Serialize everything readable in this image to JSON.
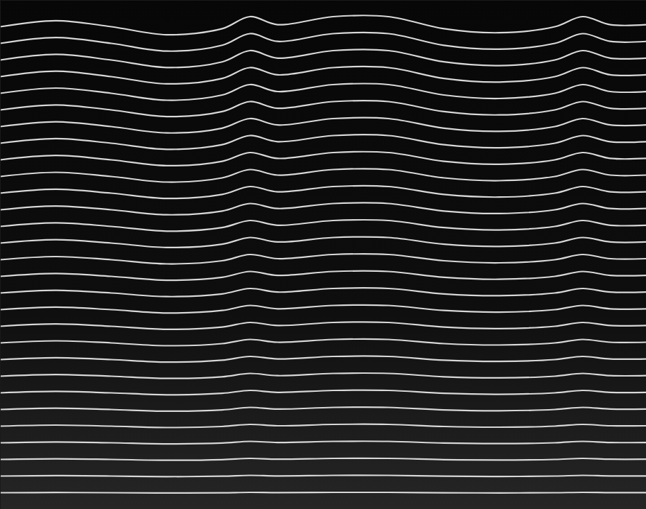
{
  "chart_data": {
    "type": "line",
    "color": "#d9d9d9",
    "tick_labels": false,
    "xlim": [
      0,
      932
    ],
    "ylim": [
      0,
      734
    ],
    "x": [
      0,
      80,
      160,
      240,
      320,
      360,
      400,
      480,
      560,
      640,
      720,
      800,
      840,
      880,
      932
    ],
    "series": [
      {
        "values": [
          24,
          24.3,
          24,
          23.6,
          23.9,
          24.5,
          24.1,
          24.5,
          24.5,
          23.9,
          23.7,
          24,
          24.5,
          24.1,
          24.1
        ]
      },
      {
        "values": [
          48,
          48.6,
          48,
          47.2,
          47.8,
          49,
          48.2,
          49,
          49,
          47.8,
          47.4,
          48,
          49,
          48.2,
          48.2
        ]
      },
      {
        "values": [
          72,
          72.9,
          72,
          70.8,
          71.7,
          73.5,
          72.3,
          73.5,
          73.5,
          71.7,
          71.1,
          72,
          73.5,
          72.3,
          72.3
        ]
      },
      {
        "values": [
          96,
          97.2,
          96,
          94.4,
          95.6,
          98,
          96.4,
          98,
          98,
          95.6,
          94.8,
          96,
          98,
          96.4,
          96.4
        ]
      },
      {
        "values": [
          120,
          121.5,
          120,
          118,
          119.5,
          122.5,
          120.5,
          122.5,
          122.5,
          119.5,
          118.5,
          120,
          122.5,
          120.5,
          120.5
        ]
      },
      {
        "values": [
          144,
          145.8,
          144,
          141.6,
          143.4,
          147,
          144.6,
          147,
          147,
          143.4,
          142.2,
          144,
          147,
          144.6,
          144.6
        ]
      },
      {
        "values": [
          168,
          170.1,
          168,
          165.2,
          167.3,
          171.5,
          168.7,
          171.5,
          171.5,
          167.3,
          165.9,
          168,
          171.5,
          168.7,
          168.7
        ]
      },
      {
        "values": [
          192,
          194.4,
          192,
          188.8,
          191.2,
          196,
          192.8,
          196,
          196,
          191.2,
          189.6,
          192,
          196,
          192.8,
          192.8
        ]
      },
      {
        "values": [
          216,
          218.7,
          216,
          212.4,
          215.1,
          220.5,
          216.9,
          220.5,
          220.5,
          215.1,
          213.3,
          216,
          220.5,
          216.9,
          216.9
        ]
      },
      {
        "values": [
          240,
          243,
          240,
          236,
          239,
          245,
          241,
          245,
          245,
          239,
          237,
          240,
          245,
          241,
          241
        ]
      },
      {
        "values": [
          264,
          267.3,
          264,
          259.6,
          262.9,
          269.5,
          265.1,
          269.5,
          269.5,
          262.9,
          260.7,
          264,
          269.5,
          265.1,
          265.1
        ]
      },
      {
        "values": [
          288,
          291.6,
          288,
          283.2,
          286.8,
          294,
          289.2,
          294,
          294,
          286.8,
          284.4,
          288,
          294,
          289.2,
          289.2
        ]
      },
      {
        "values": [
          312,
          315.9,
          312,
          306.8,
          310.7,
          318.5,
          313.3,
          318.5,
          318.5,
          310.7,
          308.1,
          312,
          318.5,
          313.3,
          313.3
        ]
      },
      {
        "values": [
          336,
          340.2,
          336,
          330.4,
          334.6,
          343,
          337.4,
          343,
          343,
          334.6,
          331.8,
          336,
          343,
          337.4,
          337.4
        ]
      },
      {
        "values": [
          360,
          364.5,
          360,
          354,
          358.5,
          367.5,
          361.5,
          367.5,
          367.5,
          358.5,
          355.5,
          360,
          367.5,
          361.5,
          361.5
        ]
      },
      {
        "values": [
          384,
          388.8,
          384,
          377.6,
          382.4,
          392,
          385.6,
          392,
          392,
          382.4,
          379.2,
          384,
          392,
          385.6,
          385.6
        ]
      },
      {
        "values": [
          408,
          413.1,
          408,
          401.2,
          406.3,
          416.5,
          409.7,
          416.5,
          416.5,
          406.3,
          402.9,
          408,
          416.5,
          409.7,
          409.7
        ]
      },
      {
        "values": [
          432,
          437.4,
          432,
          424.8,
          430.2,
          441,
          433.8,
          441,
          441,
          430.2,
          426.6,
          432,
          441,
          433.8,
          433.8
        ]
      },
      {
        "values": [
          456,
          461.7,
          456,
          448.4,
          454.1,
          465.5,
          457.9,
          465.5,
          465.5,
          454.1,
          450.3,
          456,
          465.5,
          457.9,
          457.9
        ]
      },
      {
        "values": [
          480,
          486,
          480,
          472,
          478,
          490,
          482,
          490,
          490,
          478,
          474,
          480,
          490,
          482,
          482
        ]
      },
      {
        "values": [
          504,
          510.3,
          504,
          495.6,
          501.9,
          514.5,
          506.1,
          514.5,
          514.5,
          501.9,
          497.7,
          504,
          514.5,
          506.1,
          506.1
        ]
      },
      {
        "values": [
          528,
          534.6,
          528,
          519.2,
          525.8,
          539,
          530.2,
          539,
          539,
          525.8,
          521.4,
          528,
          539,
          530.2,
          530.2
        ]
      },
      {
        "values": [
          552,
          558.9,
          552,
          542.8,
          549.7,
          563.5,
          554.3,
          563.5,
          563.5,
          549.7,
          545.1,
          552,
          563.5,
          554.3,
          554.3
        ]
      },
      {
        "values": [
          576,
          583.2,
          576,
          566.4,
          573.6,
          588,
          578.4,
          588,
          588,
          573.6,
          568.8,
          576,
          588,
          578.4,
          578.4
        ]
      },
      {
        "values": [
          600,
          607.5,
          600,
          590,
          597.5,
          612.5,
          602.5,
          612.5,
          612.5,
          597.5,
          592.5,
          600,
          612.5,
          602.5,
          602.5
        ]
      },
      {
        "values": [
          624,
          631.8,
          624,
          613.6,
          621.4,
          637,
          626.6,
          637,
          637,
          621.4,
          616.2,
          624,
          637,
          626.6,
          626.6
        ]
      },
      {
        "values": [
          648,
          656.1,
          648,
          637.2,
          645.3,
          661.5,
          650.7,
          661.5,
          661.5,
          645.3,
          639.9,
          648,
          661.5,
          650.7,
          650.7
        ]
      },
      {
        "values": [
          672,
          680.4,
          672,
          660.8,
          669.2,
          686,
          674.8,
          686,
          686,
          669.2,
          663.6,
          672,
          686,
          674.8,
          674.8
        ]
      },
      {
        "values": [
          696,
          704.7,
          696,
          684.4,
          693.1,
          710.5,
          698.9,
          710.5,
          710.5,
          693.1,
          687.3,
          696,
          710.5,
          698.9,
          698.9
        ]
      }
    ]
  }
}
